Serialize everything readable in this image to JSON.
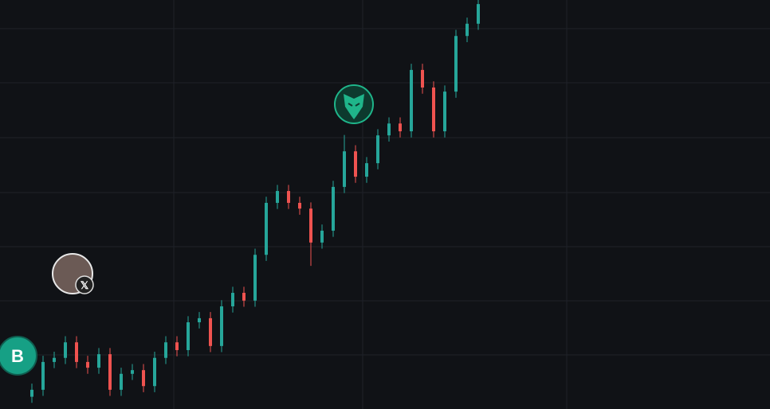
{
  "chart_data": {
    "type": "candlestick",
    "up_color": "#26a69a",
    "down_color": "#ef5350",
    "ylim": [
      0,
      100
    ],
    "open": [
      3,
      4.7,
      11.5,
      12.5,
      16.3,
      11.5,
      10.1,
      13.4,
      4.7,
      8.6,
      9.5,
      5.6,
      12.5,
      16.3,
      14.4,
      21.2,
      22.2,
      15.4,
      25.1,
      28.4,
      26.5,
      37.7,
      50.4,
      53.3,
      50.4,
      49.0,
      40.7,
      43.6,
      54.3,
      63.0,
      56.8,
      60.1,
      66.9,
      69.8,
      67.9,
      82.9,
      78.6,
      67.9,
      77.6,
      91.2,
      94.2
    ],
    "high": [
      6.2,
      13.0,
      14.0,
      17.8,
      17.8,
      13.0,
      14.9,
      14.9,
      10.1,
      11.0,
      11.0,
      14.0,
      17.8,
      17.8,
      22.7,
      23.7,
      23.7,
      26.6,
      29.9,
      29.9,
      39.2,
      51.9,
      54.8,
      54.8,
      51.9,
      50.5,
      45.1,
      55.8,
      67.0,
      64.5,
      61.6,
      68.4,
      71.3,
      71.3,
      84.4,
      84.4,
      80.1,
      79.1,
      92.7,
      95.7,
      100
    ],
    "low": [
      1.5,
      3.2,
      10.0,
      11.0,
      10.0,
      8.6,
      8.6,
      3.2,
      3.2,
      7.1,
      4.1,
      4.1,
      11.0,
      12.9,
      12.9,
      19.7,
      13.9,
      13.9,
      23.6,
      25.0,
      25.0,
      36.2,
      48.9,
      48.9,
      47.5,
      35.0,
      39.2,
      42.1,
      52.8,
      55.3,
      55.3,
      58.6,
      65.4,
      66.4,
      66.4,
      77.1,
      66.4,
      66.4,
      76.1,
      89.7,
      92.7
    ],
    "close": [
      4.7,
      11.5,
      12.5,
      16.3,
      11.5,
      10.1,
      13.4,
      4.7,
      8.6,
      9.5,
      5.6,
      12.5,
      16.3,
      14.4,
      21.2,
      22.2,
      15.4,
      25.1,
      28.4,
      26.5,
      37.7,
      50.4,
      53.3,
      50.4,
      49.0,
      40.7,
      43.6,
      54.3,
      63.0,
      56.8,
      60.1,
      66.9,
      69.8,
      67.9,
      82.9,
      78.6,
      67.9,
      77.6,
      91.2,
      94.2,
      99.0
    ],
    "markers": {
      "b_label": "B",
      "x_label": "𝕏"
    }
  }
}
